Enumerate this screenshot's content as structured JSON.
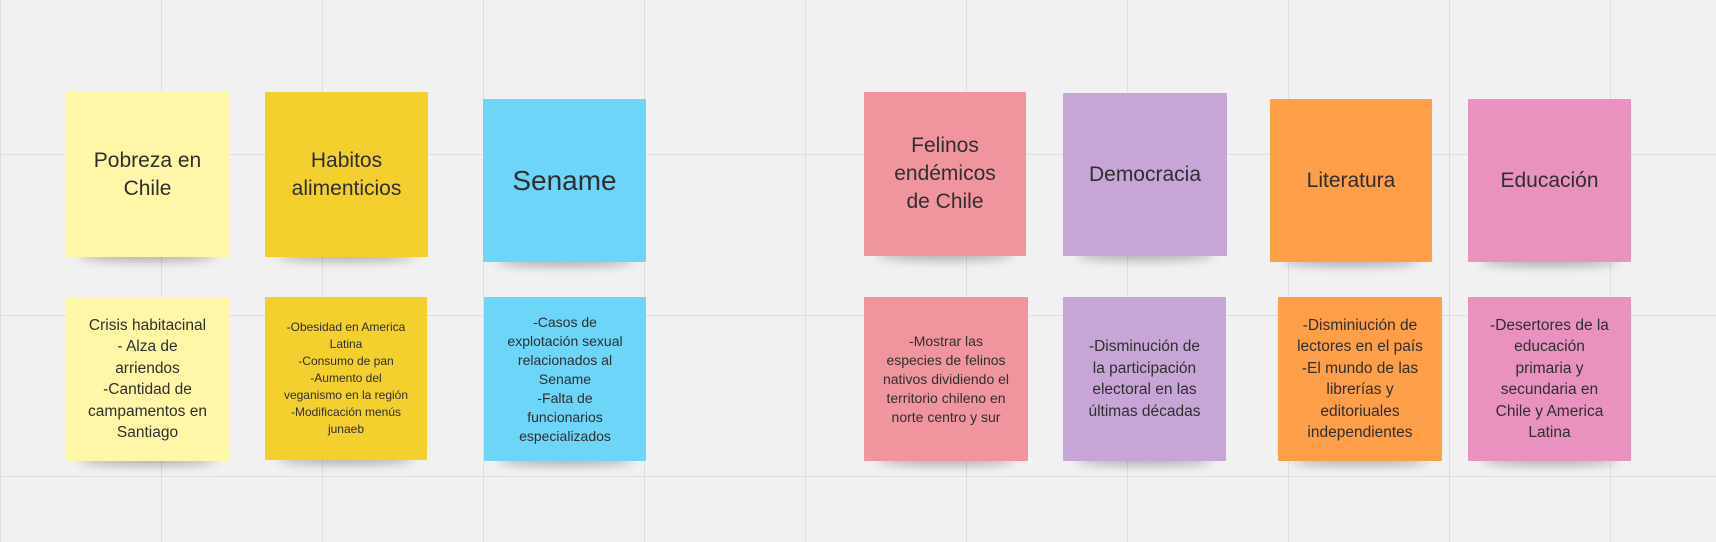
{
  "board": {
    "background": "#f1f1f1",
    "grid_color": "#dedede"
  },
  "notes": {
    "pobreza": {
      "title": "Pobreza en\nChile",
      "body": "Crisis habitacinal\n- Alza de\narriendos\n-Cantidad de\ncampamentos en\nSantiago",
      "color": "#fff7a8"
    },
    "habitos": {
      "title": "Habitos\nalimenticios",
      "body": "-Obesidad en America\nLatina\n-Consumo de pan\n-Aumento del\nveganismo en la región\n-Modificación menús\njunaeb",
      "color": "#f3d02e"
    },
    "sename": {
      "title": "Sename",
      "body": "-Casos de\nexplotación sexual\nrelacionados al\nSename\n-Falta de\nfuncionarios\nespecializados",
      "color": "#6dd5f7"
    },
    "felinos": {
      "title": "Felinos\nendémicos\nde Chile",
      "body": "-Mostrar las\nespecies de felinos\nnativos dividiendo el\nterritorio chileno en\nnorte centro y sur",
      "color": "#f0959e"
    },
    "democracia": {
      "title": "Democracia",
      "body": "-Disminución de\nla participación\nelectoral en las\núltimas décadas",
      "color": "#c7a5d6"
    },
    "literatura": {
      "title": "Literatura",
      "body": "-Disminiución de\nlectores en el país\n-El mundo de las\nlibrerías y\neditoriuales\nindependientes",
      "color": "#fd9e48"
    },
    "educacion": {
      "title": "Educación",
      "body": "-Desertores de la\neducación\nprimaria y\nsecundaria en\nChile y America\nLatina",
      "color": "#ea92bf"
    }
  }
}
